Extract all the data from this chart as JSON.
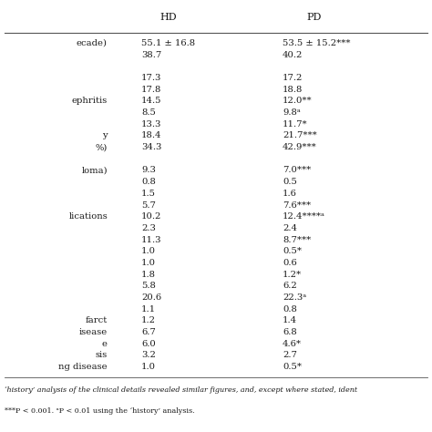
{
  "header_row": [
    "HD",
    "PD"
  ],
  "rows": [
    [
      "ecade)",
      "55.1 ± 16.8",
      "53.5 ± 15.2***"
    ],
    [
      "",
      "38.7",
      "40.2"
    ],
    [
      "",
      "",
      ""
    ],
    [
      "",
      "17.3",
      "17.2"
    ],
    [
      "",
      "17.8",
      "18.8"
    ],
    [
      "ephritis",
      "14.5",
      "12.0**"
    ],
    [
      "",
      "8.5",
      "9.8ᵃ"
    ],
    [
      "",
      "13.3",
      "11.7*"
    ],
    [
      "y",
      "18.4",
      "21.7***"
    ],
    [
      "%)",
      "34.3",
      "42.9***"
    ],
    [
      "",
      "",
      ""
    ],
    [
      "loma)",
      "9.3",
      "7.0***"
    ],
    [
      "",
      "0.8",
      "0.5"
    ],
    [
      "",
      "1.5",
      "1.6"
    ],
    [
      "",
      "5.7",
      "7.6***"
    ],
    [
      "lications",
      "10.2",
      "12.4****ᵃ"
    ],
    [
      "",
      "2.3",
      "2.4"
    ],
    [
      "",
      "11.3",
      "8.7***"
    ],
    [
      "",
      "1.0",
      "0.5*"
    ],
    [
      "",
      "1.0",
      "0.6"
    ],
    [
      "",
      "1.8",
      "1.2*"
    ],
    [
      "",
      "5.8",
      "6.2"
    ],
    [
      "",
      "20.6",
      "22.3ᵃ"
    ],
    [
      "",
      "1.1",
      "0.8"
    ],
    [
      "farct",
      "1.2",
      "1.4"
    ],
    [
      "isease",
      "6.7",
      "6.8"
    ],
    [
      "e",
      "6.0",
      "4.6*"
    ],
    [
      "sis",
      "3.2",
      "2.7"
    ],
    [
      "ng disease",
      "1.0",
      "0.5*"
    ]
  ],
  "footnote1": "‘history’ analysis of the clinical details revealed similar figures, and, except where stated, ident",
  "footnote2": "***P < 0.001. ᵃP < 0.01 using the ‘history’ analysis.",
  "bg_color": "#ffffff",
  "text_color": "#1a1a1a",
  "line_color": "#555555",
  "font_size": 7.2,
  "header_font_size": 8.0
}
